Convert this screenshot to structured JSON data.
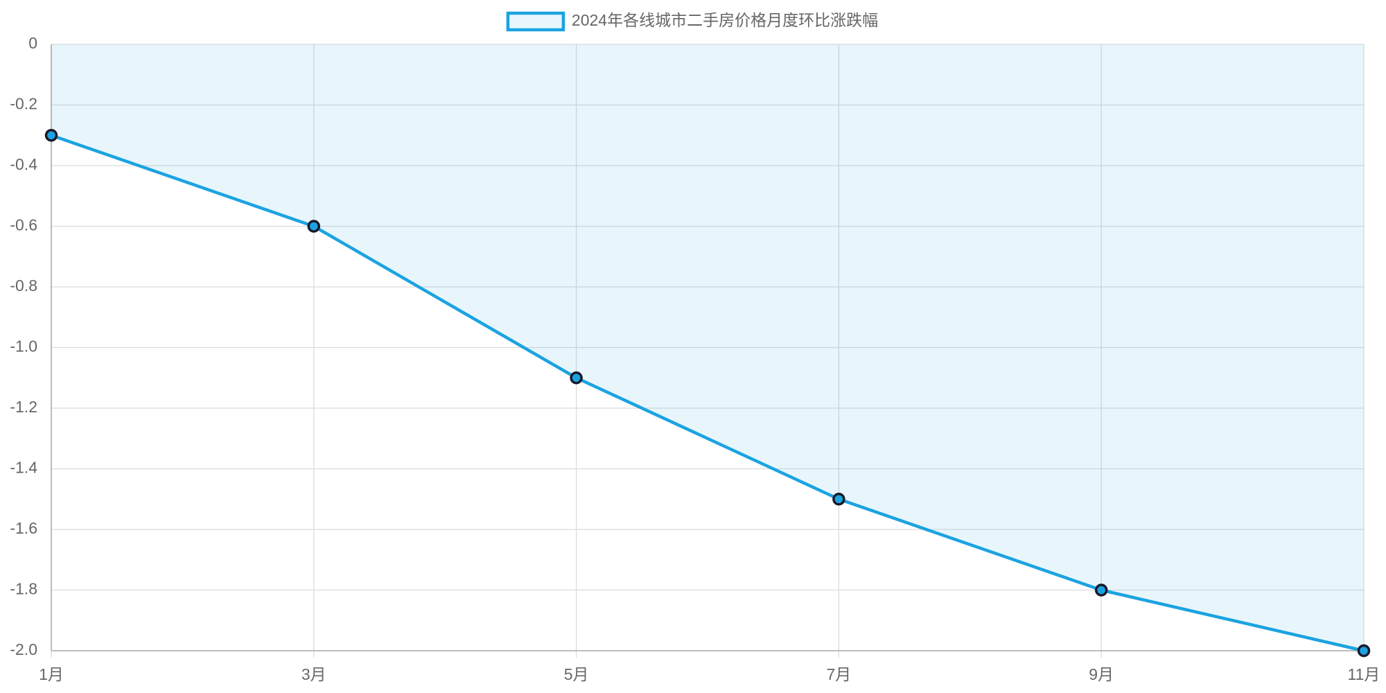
{
  "chart_data": {
    "type": "line",
    "categories": [
      "1月",
      "3月",
      "5月",
      "7月",
      "9月",
      "11月"
    ],
    "series": [
      {
        "name": "2024年各线城市二手房价格月度环比涨跌幅",
        "color": "#1ba3e1",
        "values": [
          -0.3,
          -0.6,
          -1.1,
          -1.5,
          -1.8,
          -2.0
        ]
      }
    ],
    "ylim": [
      -2.0,
      0
    ],
    "yticks": [
      0,
      -0.2,
      -0.4,
      -0.6,
      -0.8,
      {
        "value": -1.0,
        "label": "-1.0"
      },
      -1.2,
      -1.4,
      -1.6,
      -1.8,
      {
        "value": -2.0,
        "label": "-2.0"
      }
    ],
    "grid": true,
    "area": true,
    "legend": "top"
  }
}
